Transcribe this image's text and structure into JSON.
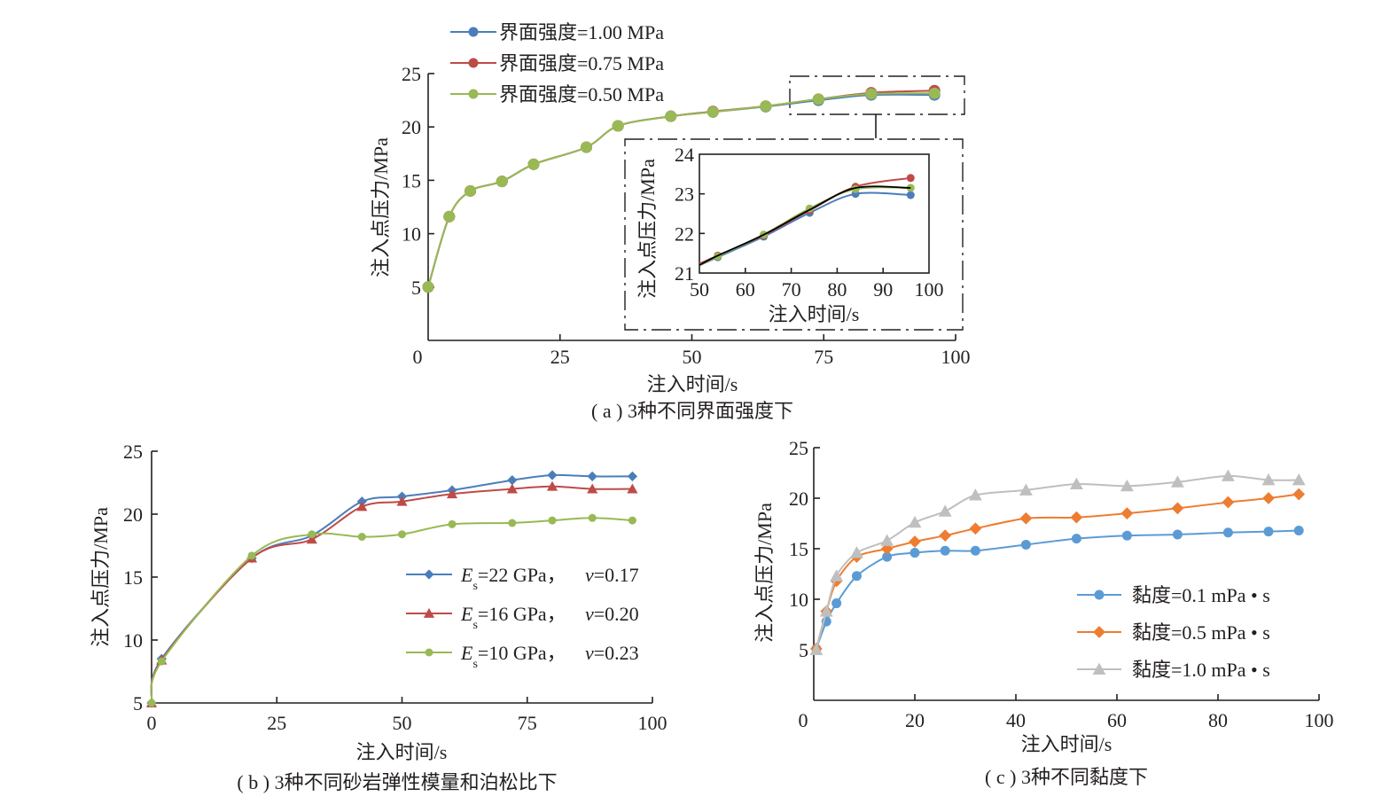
{
  "chart_data": [
    {
      "id": "a",
      "type": "line",
      "caption": "( a ) 3种不同界面强度下",
      "xlabel": "注入时间/s",
      "ylabel": "注入点压力/MPa",
      "xlim": [
        0,
        100
      ],
      "ylim": [
        0,
        25
      ],
      "xticks": [
        0,
        25,
        50,
        75,
        100
      ],
      "yticks": [
        5,
        10,
        15,
        20,
        25
      ],
      "legend_position": "top-left",
      "x": [
        0,
        4,
        8,
        14,
        20,
        30,
        36,
        46,
        54,
        64,
        74,
        84,
        96
      ],
      "series": [
        {
          "name": "界面强度=1.00 MPa",
          "color": "#4a7ebb",
          "marker": "circle",
          "values": [
            5.0,
            11.6,
            14.0,
            14.9,
            16.5,
            18.1,
            20.1,
            21.0,
            21.4,
            21.9,
            22.5,
            23.0,
            23.0
          ]
        },
        {
          "name": "界面强度=0.75 MPa",
          "color": "#be4b48",
          "marker": "circle",
          "values": [
            5.0,
            11.6,
            14.0,
            14.9,
            16.5,
            18.1,
            20.1,
            21.0,
            21.45,
            21.95,
            22.6,
            23.2,
            23.4
          ]
        },
        {
          "name": "界面强度=0.50 MPa",
          "color": "#98b954",
          "marker": "circle",
          "values": [
            5.0,
            11.6,
            14.0,
            14.9,
            16.5,
            18.1,
            20.1,
            21.0,
            21.4,
            21.95,
            22.6,
            23.1,
            23.15
          ]
        }
      ],
      "inset": {
        "xlabel": "注入时间/s",
        "ylabel": "注入点压力/MPa",
        "xlim": [
          50,
          100
        ],
        "ylim": [
          21,
          24
        ],
        "xticks": [
          50,
          60,
          70,
          80,
          90,
          100
        ],
        "yticks": [
          21,
          22,
          23,
          24
        ],
        "x": [
          54,
          64,
          74,
          84,
          96
        ],
        "series": [
          {
            "name": "界面强度=1.00 MPa",
            "color": "#4a7ebb",
            "values": [
              21.4,
              21.92,
              22.52,
              23.0,
              22.97
            ]
          },
          {
            "name": "界面强度=0.75 MPa",
            "color": "#be4b48",
            "values": [
              21.44,
              21.95,
              22.58,
              23.18,
              23.4
            ]
          },
          {
            "name": "界面强度=0.50 MPa",
            "color": "#98b954",
            "values": [
              21.42,
              21.97,
              22.63,
              23.12,
              23.15
            ]
          }
        ],
        "reference_line_color": "#000000"
      }
    },
    {
      "id": "b",
      "type": "line",
      "caption": "( b ) 3种不同砂岩弹性模量和泊松比下",
      "xlabel": "注入时间/s",
      "ylabel": "注入点压力/MPa",
      "xlim": [
        0,
        100
      ],
      "ylim": [
        5,
        25
      ],
      "xticks": [
        0,
        25,
        50,
        75,
        100
      ],
      "yticks": [
        5,
        10,
        15,
        20,
        25
      ],
      "legend_position": "center-right",
      "x": [
        0,
        2,
        20,
        32,
        42,
        50,
        60,
        72,
        80,
        88,
        96
      ],
      "series": [
        {
          "name": "Es=22 GPa, v=0.17",
          "label_e": "E",
          "label_sub": "s",
          "label_rest": "=22 GPa，",
          "label_v": "v",
          "label_vval": "=0.17",
          "color": "#4a7ebb",
          "marker": "diamond",
          "values": [
            5.0,
            8.5,
            16.5,
            18.3,
            21.0,
            21.4,
            21.9,
            22.7,
            23.1,
            23.0,
            23.0
          ]
        },
        {
          "name": "Es=16 GPa, v=0.20",
          "label_e": "E",
          "label_sub": "s",
          "label_rest": "=16 GPa，",
          "label_v": "v",
          "label_vval": "=0.20",
          "color": "#be4b48",
          "marker": "triangle",
          "values": [
            5.0,
            8.4,
            16.5,
            18.0,
            20.6,
            21.0,
            21.6,
            22.0,
            22.2,
            22.0,
            22.0
          ]
        },
        {
          "name": "Es=10 GPa, v=0.23",
          "label_e": "E",
          "label_sub": "s",
          "label_rest": "=10 GPa，",
          "label_v": "v",
          "label_vval": "=0.23",
          "color": "#98b954",
          "marker": "circle",
          "values": [
            5.0,
            8.3,
            16.7,
            18.4,
            18.2,
            18.4,
            19.2,
            19.3,
            19.5,
            19.7,
            19.5
          ]
        }
      ]
    },
    {
      "id": "c",
      "type": "line",
      "caption": "( c ) 3种不同黏度下",
      "xlabel": "注入时间/s",
      "ylabel": "注入点压力/MPa",
      "xlim": [
        0,
        100
      ],
      "ylim": [
        0,
        25
      ],
      "xticks": [
        0,
        20,
        40,
        60,
        80,
        100
      ],
      "yticks": [
        5,
        10,
        15,
        20,
        25
      ],
      "legend_position": "center-right",
      "x": [
        0.5,
        2.5,
        4.5,
        8.5,
        14.5,
        20,
        26,
        32,
        42,
        52,
        62,
        72,
        82,
        90,
        96
      ],
      "series": [
        {
          "name": "黏度=0.1 mPa • s",
          "color": "#5b9bd5",
          "marker": "circle",
          "values": [
            5.1,
            7.8,
            9.6,
            12.3,
            14.2,
            14.6,
            14.8,
            14.8,
            15.4,
            16.0,
            16.3,
            16.4,
            16.6,
            16.7,
            16.8
          ]
        },
        {
          "name": "黏度=0.5 mPa • s",
          "color": "#ed7d31",
          "marker": "diamond",
          "values": [
            5.1,
            8.8,
            11.8,
            14.2,
            15.0,
            15.7,
            16.3,
            17.0,
            18.0,
            18.1,
            18.5,
            19.0,
            19.6,
            20.0,
            20.4
          ]
        },
        {
          "name": "黏度=1.0 mPa • s",
          "color": "#bfbfbf",
          "marker": "triangle",
          "values": [
            5.0,
            8.8,
            12.3,
            14.6,
            15.8,
            17.6,
            18.7,
            20.3,
            20.8,
            21.4,
            21.2,
            21.6,
            22.2,
            21.8,
            21.8
          ]
        }
      ]
    }
  ]
}
